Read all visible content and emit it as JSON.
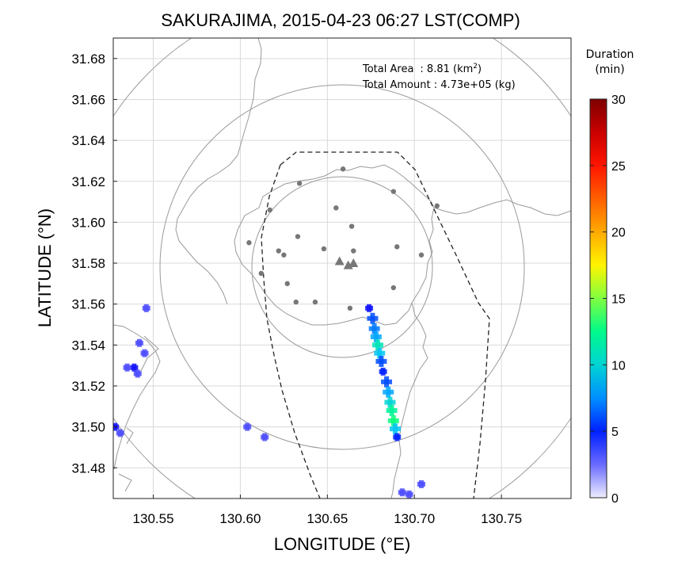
{
  "title": "SAKURAJIMA, 2015-04-23 06:27 LST(COMP)",
  "xlabel": "LONGITUDE (°E)",
  "ylabel": "LATITUDE (°N)",
  "info": {
    "area_label": "Total Area",
    "area_sep": ": 8.81 (km",
    "area_sup": "2",
    "area_close": ")",
    "amount": "Total Amount : 4.73e+05 (kg)"
  },
  "colorbar": {
    "title_line1": "Duration",
    "title_line2": "(min)",
    "ticks": [
      "0",
      "5",
      "10",
      "15",
      "20",
      "25",
      "30"
    ],
    "range": [
      0,
      30
    ],
    "colors": [
      "#ffffff",
      "#0000ff",
      "#00bfff",
      "#00ff7f",
      "#ffff00",
      "#ff7f00",
      "#ff0000",
      "#7f0000"
    ]
  },
  "chart_data": {
    "type": "heatmap",
    "xlim": [
      130.527,
      130.79
    ],
    "ylim": [
      31.465,
      31.69
    ],
    "xticks": [
      130.55,
      130.6,
      130.65,
      130.7,
      130.75
    ],
    "xtick_labels": [
      "130.55",
      "130.60",
      "130.65",
      "130.70",
      "130.75"
    ],
    "yticks": [
      31.48,
      31.5,
      31.52,
      31.54,
      31.56,
      31.58,
      31.6,
      31.62,
      31.64,
      31.66,
      31.68
    ],
    "ytick_labels": [
      "31.48",
      "31.50",
      "31.52",
      "31.54",
      "31.56",
      "31.58",
      "31.60",
      "31.62",
      "31.64",
      "31.66",
      "31.68"
    ],
    "grid": true,
    "summit": [
      130.66,
      31.58
    ],
    "range_rings_km": [
      10,
      20,
      30
    ],
    "volcano_markers": [
      [
        130.657,
        31.581
      ],
      [
        130.662,
        31.579
      ],
      [
        130.665,
        31.58
      ]
    ],
    "stations": [
      [
        130.659,
        31.626
      ],
      [
        130.634,
        31.619
      ],
      [
        130.688,
        31.615
      ],
      [
        130.655,
        31.607
      ],
      [
        130.713,
        31.608
      ],
      [
        130.617,
        31.606
      ],
      [
        130.664,
        31.598
      ],
      [
        130.633,
        31.593
      ],
      [
        130.605,
        31.59
      ],
      [
        130.622,
        31.586
      ],
      [
        130.69,
        31.588
      ],
      [
        130.648,
        31.587
      ],
      [
        130.625,
        31.584
      ],
      [
        130.665,
        31.586
      ],
      [
        130.704,
        31.584
      ],
      [
        130.612,
        31.575
      ],
      [
        130.627,
        31.57
      ],
      [
        130.688,
        31.568
      ],
      [
        130.632,
        31.561
      ],
      [
        130.643,
        31.561
      ],
      [
        130.663,
        31.558
      ]
    ],
    "deposit": [
      {
        "lon": 130.674,
        "lat": 31.558,
        "dur": 4
      },
      {
        "lon": 130.676,
        "lat": 31.553,
        "dur": 6
      },
      {
        "lon": 130.677,
        "lat": 31.548,
        "dur": 7
      },
      {
        "lon": 130.678,
        "lat": 31.544,
        "dur": 8
      },
      {
        "lon": 130.679,
        "lat": 31.54,
        "dur": 11
      },
      {
        "lon": 130.68,
        "lat": 31.536,
        "dur": 9
      },
      {
        "lon": 130.681,
        "lat": 31.532,
        "dur": 6
      },
      {
        "lon": 130.682,
        "lat": 31.527,
        "dur": 5
      },
      {
        "lon": 130.684,
        "lat": 31.522,
        "dur": 6
      },
      {
        "lon": 130.685,
        "lat": 31.517,
        "dur": 8
      },
      {
        "lon": 130.686,
        "lat": 31.512,
        "dur": 10
      },
      {
        "lon": 130.687,
        "lat": 31.508,
        "dur": 12
      },
      {
        "lon": 130.688,
        "lat": 31.503,
        "dur": 13
      },
      {
        "lon": 130.689,
        "lat": 31.499,
        "dur": 9
      },
      {
        "lon": 130.69,
        "lat": 31.495,
        "dur": 5
      },
      {
        "lon": 130.693,
        "lat": 31.468,
        "dur": 3
      },
      {
        "lon": 130.697,
        "lat": 31.467,
        "dur": 3
      },
      {
        "lon": 130.704,
        "lat": 31.472,
        "dur": 3
      },
      {
        "lon": 130.546,
        "lat": 31.558,
        "dur": 3
      },
      {
        "lon": 130.542,
        "lat": 31.541,
        "dur": 3
      },
      {
        "lon": 130.545,
        "lat": 31.536,
        "dur": 3
      },
      {
        "lon": 130.539,
        "lat": 31.529,
        "dur": 4
      },
      {
        "lon": 130.535,
        "lat": 31.529,
        "dur": 3
      },
      {
        "lon": 130.541,
        "lat": 31.526,
        "dur": 3
      },
      {
        "lon": 130.528,
        "lat": 31.5,
        "dur": 4
      },
      {
        "lon": 130.531,
        "lat": 31.497,
        "dur": 3
      },
      {
        "lon": 130.604,
        "lat": 31.5,
        "dur": 3
      },
      {
        "lon": 130.614,
        "lat": 31.495,
        "dur": 3
      }
    ]
  }
}
